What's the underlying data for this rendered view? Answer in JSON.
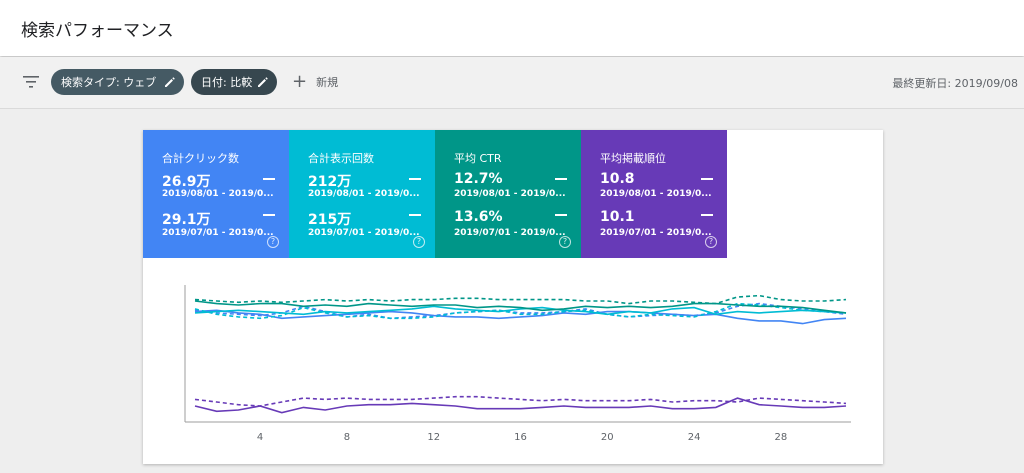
{
  "header": {
    "title": "検索パフォーマンス"
  },
  "toolbar": {
    "chip_search_type": "検索タイプ: ウェブ",
    "chip_date": "日付: 比較",
    "new_label": "新規",
    "last_updated": "最終更新日: 2019/09/08"
  },
  "metrics": [
    {
      "label": "合計クリック数",
      "value1": "26.9万",
      "range1": "2019/08/01 - 2019/0...",
      "value2": "29.1万",
      "range2": "2019/07/01 - 2019/0...",
      "color": "#4285f4"
    },
    {
      "label": "合計表示回数",
      "value1": "212万",
      "range1": "2019/08/01 - 2019/0...",
      "value2": "215万",
      "range2": "2019/07/01 - 2019/0...",
      "color": "#00bcd4"
    },
    {
      "label": "平均 CTR",
      "value1": "12.7%",
      "range1": "2019/08/01 - 2019/0...",
      "value2": "13.6%",
      "range2": "2019/07/01 - 2019/0...",
      "color": "#009688"
    },
    {
      "label": "平均掲載順位",
      "value1": "10.8",
      "range1": "2019/08/01 - 2019/0...",
      "value2": "10.1",
      "range2": "2019/07/01 - 2019/0...",
      "color": "#673ab7"
    }
  ],
  "chart_data": {
    "type": "line",
    "x": [
      1,
      2,
      3,
      4,
      5,
      6,
      7,
      8,
      9,
      10,
      11,
      12,
      13,
      14,
      15,
      16,
      17,
      18,
      19,
      20,
      21,
      22,
      23,
      24,
      25,
      26,
      27,
      28,
      29,
      30,
      31
    ],
    "xticks": [
      4,
      8,
      12,
      16,
      20,
      24,
      28
    ],
    "xlim": [
      1,
      31
    ],
    "ylim": [
      0,
      100
    ],
    "y_axis_labels_shown": false,
    "grid": false,
    "series": [
      {
        "color": "#4285f4",
        "style": "solid",
        "values": [
          80,
          81,
          79,
          78,
          75,
          76,
          77,
          78,
          79,
          80,
          79,
          77,
          76,
          76,
          75,
          76,
          77,
          79,
          78,
          80,
          80,
          79,
          78,
          77,
          78,
          75,
          73,
          73,
          71,
          74,
          75
        ]
      },
      {
        "color": "#4285f4",
        "style": "dashed",
        "values": [
          81,
          79,
          78,
          77,
          79,
          84,
          80,
          76,
          78,
          75,
          76,
          77,
          79,
          80,
          81,
          79,
          79,
          80,
          82,
          78,
          76,
          77,
          78,
          77,
          79,
          84,
          86,
          84,
          82,
          80,
          78
        ]
      },
      {
        "color": "#00bcd4",
        "style": "solid",
        "values": [
          79,
          80,
          81,
          80,
          79,
          78,
          80,
          79,
          80,
          81,
          82,
          84,
          82,
          81,
          80,
          82,
          83,
          81,
          80,
          78,
          80,
          79,
          82,
          83,
          78,
          80,
          79,
          80,
          81,
          80,
          79
        ]
      },
      {
        "color": "#00bcd4",
        "style": "dashed",
        "values": [
          82,
          78,
          76,
          75,
          77,
          83,
          79,
          76,
          77,
          75,
          75,
          76,
          79,
          80,
          81,
          78,
          78,
          80,
          81,
          78,
          76,
          78,
          77,
          76,
          80,
          86,
          85,
          83,
          81,
          80,
          79
        ]
      },
      {
        "color": "#009688",
        "style": "solid",
        "values": [
          88,
          86,
          85,
          86,
          86,
          84,
          85,
          84,
          86,
          85,
          84,
          85,
          85,
          83,
          84,
          83,
          81,
          82,
          84,
          83,
          84,
          83,
          84,
          86,
          86,
          85,
          84,
          84,
          83,
          81,
          79
        ]
      },
      {
        "color": "#009688",
        "style": "dashed",
        "values": [
          89,
          88,
          87,
          88,
          87,
          88,
          89,
          88,
          89,
          88,
          89,
          89,
          90,
          90,
          89,
          89,
          89,
          89,
          88,
          88,
          86,
          88,
          88,
          87,
          86,
          91,
          92,
          89,
          88,
          88,
          89
        ]
      },
      {
        "color": "#673ab7",
        "style": "solid",
        "values": [
          9,
          5,
          6,
          9,
          4,
          8,
          6,
          9,
          10,
          10,
          11,
          10,
          9,
          7,
          7,
          7,
          8,
          9,
          8,
          8,
          8,
          9,
          7,
          7,
          8,
          15,
          10,
          9,
          8,
          8,
          9
        ]
      },
      {
        "color": "#673ab7",
        "style": "dashed",
        "values": [
          14,
          12,
          10,
          9,
          12,
          15,
          14,
          15,
          14,
          14,
          14,
          15,
          16,
          16,
          15,
          14,
          13,
          14,
          13,
          13,
          13,
          14,
          12,
          13,
          13,
          12,
          15,
          14,
          13,
          12,
          11
        ]
      }
    ]
  }
}
